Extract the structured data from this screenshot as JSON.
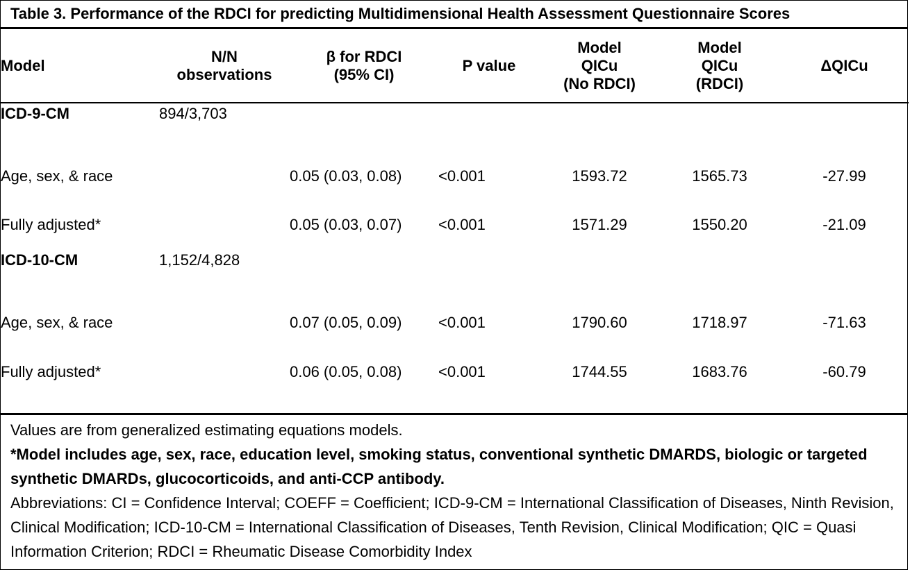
{
  "title": "Table 3. Performance of the RDCI for predicting Multidimensional Health Assessment Questionnaire Scores",
  "headers": {
    "model": [
      "Model"
    ],
    "obs": [
      "N/N",
      "observations"
    ],
    "beta": [
      "β for RDCI",
      "(95% CI)"
    ],
    "p": [
      "P value"
    ],
    "qic_no": [
      "Model",
      "QICu",
      "(No RDCI)"
    ],
    "qic_rdci": [
      "Model",
      "QICu",
      "(RDCI)"
    ],
    "dqic": [
      "ΔQICu"
    ]
  },
  "rows": [
    {
      "model": "ICD-9-CM",
      "obs": "894/3,703",
      "beta": "",
      "p": "",
      "qic_no": "",
      "qic_rdci": "",
      "dqic": ""
    },
    {
      "model": "Age, sex, & race",
      "obs": "",
      "beta": "0.05 (0.03, 0.08)",
      "p": "<0.001",
      "qic_no": "1593.72",
      "qic_rdci": "1565.73",
      "dqic": "-27.99"
    },
    {
      "model": "Fully adjusted*",
      "obs": "",
      "beta": "0.05 (0.03, 0.07)",
      "p": "<0.001",
      "qic_no": "1571.29",
      "qic_rdci": "1550.20",
      "dqic": "-21.09"
    },
    {
      "model": "ICD-10-CM",
      "obs": "1,152/4,828",
      "beta": "",
      "p": "",
      "qic_no": "",
      "qic_rdci": "",
      "dqic": ""
    },
    {
      "model": "Age, sex, & race",
      "obs": "",
      "beta": "0.07 (0.05, 0.09)",
      "p": "<0.001",
      "qic_no": "1790.60",
      "qic_rdci": "1718.97",
      "dqic": "-71.63"
    },
    {
      "model": "Fully adjusted*",
      "obs": "",
      "beta": "0.06 (0.05, 0.08)",
      "p": "<0.001",
      "qic_no": "1744.55",
      "qic_rdci": "1683.76",
      "dqic": "-60.79"
    }
  ],
  "footnotes": {
    "values_note": "Values are from generalized estimating equations models.",
    "model_note": "*Model includes age, sex, race, education level, smoking status, conventional synthetic DMARDS, biologic or targeted synthetic DMARDs, glucocorticoids, and anti-CCP antibody.",
    "abbreviations": "Abbreviations: CI = Confidence Interval; COEFF = Coefficient; ICD-9-CM = International Classification of Diseases, Ninth Revision, Clinical Modification; ICD-10-CM = International Classification of Diseases, Tenth Revision, Clinical Modification; QIC = Quasi Information Criterion; RDCI = Rheumatic Disease Comorbidity Index"
  }
}
